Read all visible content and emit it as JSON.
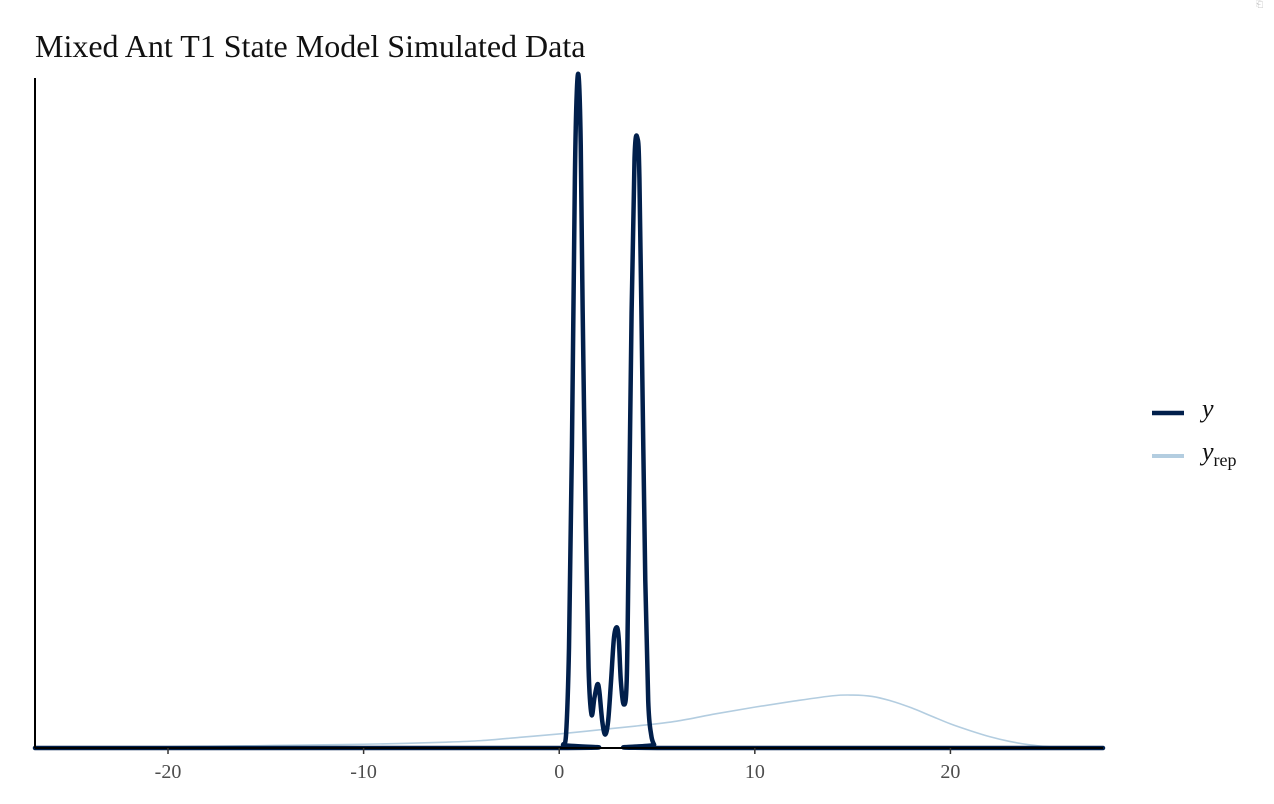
{
  "chart_data": {
    "type": "line",
    "title": "Mixed Ant T1 State Model Simulated Data",
    "xlabel": "",
    "ylabel": "",
    "xlim": [
      -26.8,
      27.8
    ],
    "ylim": [
      0,
      1.0
    ],
    "x_ticks": [
      -20,
      -10,
      0,
      10,
      20
    ],
    "x_tick_labels": [
      "-20",
      "-10",
      "0",
      "10",
      "20"
    ],
    "y_ticks_shown": false,
    "grid": false,
    "legend": {
      "placement": "right",
      "entries": [
        {
          "label": "y",
          "subscript": "",
          "color": "#011f4b"
        },
        {
          "label": "y",
          "subscript": "rep",
          "color": "#b3cde0"
        }
      ]
    },
    "series": [
      {
        "label": "y",
        "color": "#011f4b",
        "line_width": "thick",
        "x": [
          -26.8,
          0.0,
          0.2,
          0.35,
          0.5,
          0.65,
          0.8,
          0.9,
          1.0,
          1.1,
          1.2,
          1.35,
          1.5,
          1.65,
          1.8,
          1.95,
          2.05,
          2.2,
          2.35,
          2.5,
          2.65,
          2.8,
          2.95,
          3.05,
          3.15,
          3.3,
          3.45,
          3.55,
          3.7,
          3.85,
          4.0,
          4.1,
          4.25,
          4.4,
          4.55,
          4.7,
          4.85,
          5.0,
          27.8
        ],
        "y": [
          0,
          0,
          0.005,
          0.02,
          0.15,
          0.45,
          0.85,
          0.98,
          1.0,
          0.9,
          0.65,
          0.35,
          0.12,
          0.05,
          0.075,
          0.095,
          0.085,
          0.04,
          0.02,
          0.04,
          0.1,
          0.165,
          0.18,
          0.16,
          0.1,
          0.065,
          0.1,
          0.3,
          0.65,
          0.88,
          0.91,
          0.85,
          0.55,
          0.25,
          0.07,
          0.02,
          0.005,
          0,
          0
        ]
      },
      {
        "label": "y_rep",
        "color": "#b3cde0",
        "line_width": "thin",
        "x": [
          -26.8,
          -24,
          -22,
          -20,
          -18,
          -16,
          -14,
          -12,
          -10,
          -8,
          -6,
          -4,
          -2,
          0,
          2,
          4,
          6,
          8,
          10,
          12,
          14,
          15,
          16,
          17,
          18,
          19,
          20,
          21,
          22,
          23,
          24,
          25,
          26,
          27.8
        ],
        "y": [
          0,
          0.0004,
          0.001,
          0.0018,
          0.0025,
          0.0032,
          0.004,
          0.0048,
          0.0056,
          0.0068,
          0.0085,
          0.011,
          0.016,
          0.021,
          0.027,
          0.033,
          0.04,
          0.051,
          0.061,
          0.07,
          0.078,
          0.079,
          0.077,
          0.07,
          0.06,
          0.048,
          0.036,
          0.026,
          0.017,
          0.01,
          0.005,
          0.002,
          0.0005,
          0
        ]
      }
    ]
  }
}
